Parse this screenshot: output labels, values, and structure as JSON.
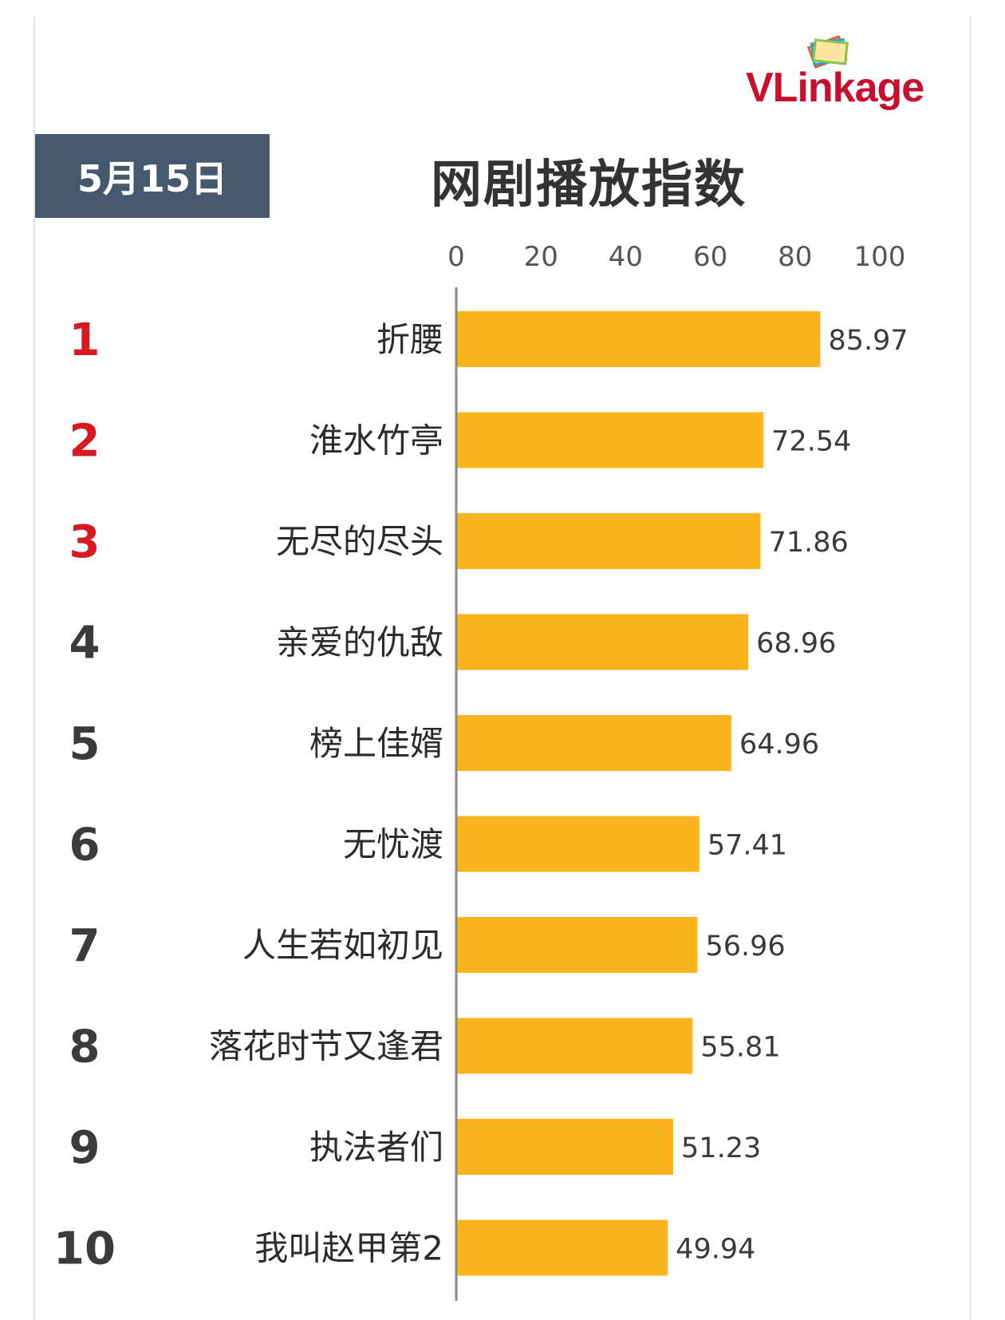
{
  "logo": {
    "text": "VLinkage"
  },
  "header": {
    "date": "5月15日",
    "title": "网剧播放指数"
  },
  "colors": {
    "bar": "#fbb41b",
    "rank_top": "#d71921",
    "rank_other": "#3b3b3b",
    "axis": "#888888",
    "date_bg": "#46586d"
  },
  "chart_data": {
    "type": "bar",
    "orientation": "horizontal",
    "title": "网剧播放指数",
    "xlim": [
      0,
      100
    ],
    "xticks": [
      "0",
      "20",
      "40",
      "60",
      "80",
      "100"
    ],
    "ranks": [
      "1",
      "2",
      "3",
      "4",
      "5",
      "6",
      "7",
      "8",
      "9",
      "10"
    ],
    "categories": [
      "折腰",
      "淮水竹亭",
      "无尽的尽头",
      "亲爱的仇敌",
      "榜上佳婿",
      "无忧渡",
      "人生若如初见",
      "落花时节又逢君",
      "执法者们",
      "我叫赵甲第2"
    ],
    "values": [
      85.97,
      72.54,
      71.86,
      68.96,
      64.96,
      57.41,
      56.96,
      55.81,
      51.23,
      49.94
    ],
    "value_labels": [
      "85.97",
      "72.54",
      "71.86",
      "68.96",
      "64.96",
      "57.41",
      "56.96",
      "55.81",
      "51.23",
      "49.94"
    ],
    "grid": false
  }
}
